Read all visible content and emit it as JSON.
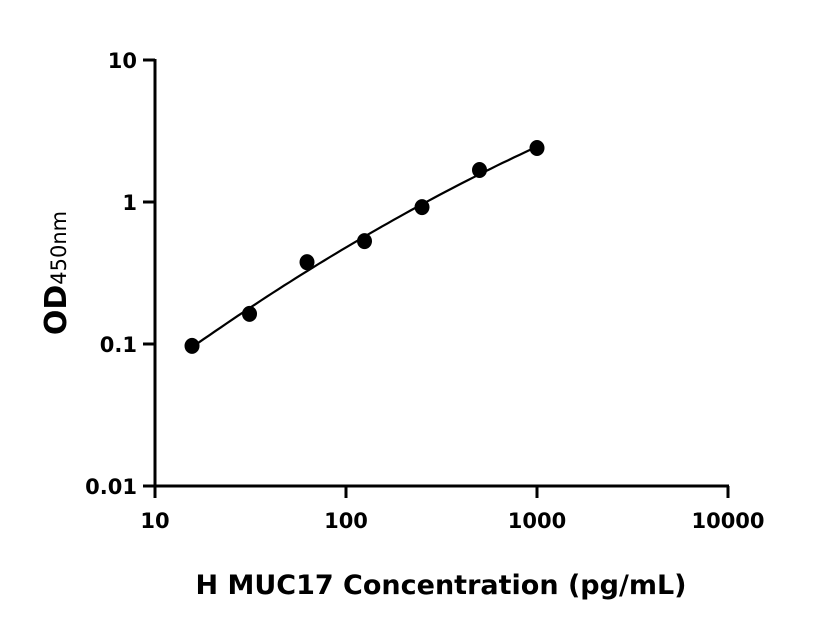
{
  "chart_data": {
    "type": "scatter",
    "title": "",
    "xlabel": "H MUC17 Concentration (pg/mL)",
    "ylabel": {
      "main": "OD",
      "subscript": "450nm"
    },
    "x_scale": "log",
    "y_scale": "log",
    "xlim": [
      10,
      10000
    ],
    "ylim": [
      0.01,
      10
    ],
    "x_ticks": [
      "10",
      "100",
      "1000",
      "10000"
    ],
    "y_ticks": [
      "0.01",
      "0.1",
      "1",
      "10"
    ],
    "grid": false,
    "fit_curve": true,
    "series": [
      {
        "x": [
          15.625,
          31.25,
          62.5,
          125,
          250,
          500,
          1000
        ],
        "y": [
          0.097,
          0.163,
          0.377,
          0.53,
          0.92,
          1.68,
          2.4
        ],
        "color": "#000000"
      }
    ]
  }
}
